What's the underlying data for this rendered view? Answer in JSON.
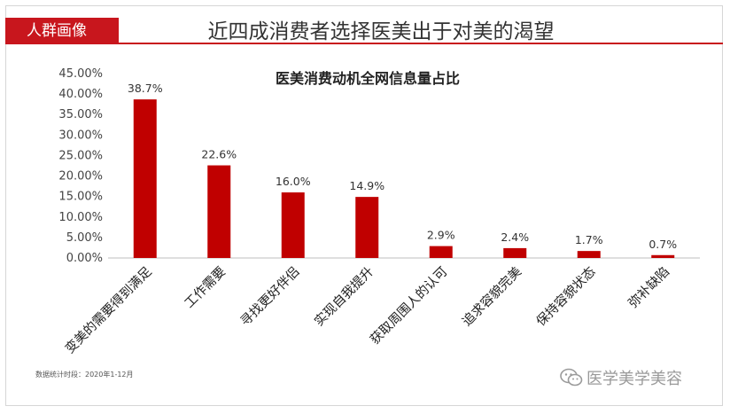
{
  "header": {
    "tag_label": "人群画像",
    "title": "近四成消费者选择医美出于对美的渴望"
  },
  "footnote": "数据统计时段：2020年1-12月",
  "watermark": {
    "text": "医学美学美容",
    "icon": "wechat-icon"
  },
  "colors": {
    "accent": "#c8161d",
    "bar": "#c00000"
  },
  "chart_data": {
    "type": "bar",
    "title": "医美消费动机全网信息量占比",
    "categories": [
      "变美的需要得到满足",
      "工作需要",
      "寻找更好伴侣",
      "实现自我提升",
      "获取周围人的认可",
      "追求容貌完美",
      "保持容貌状态",
      "弥补缺陷"
    ],
    "values": [
      38.7,
      22.6,
      16.0,
      14.9,
      2.9,
      2.4,
      1.7,
      0.7
    ],
    "value_labels": [
      "38.7%",
      "22.6%",
      "16.0%",
      "14.9%",
      "2.9%",
      "2.4%",
      "1.7%",
      "0.7%"
    ],
    "ylim": [
      0,
      45
    ],
    "yticks": [
      "0.00%",
      "5.00%",
      "10.00%",
      "15.00%",
      "20.00%",
      "25.00%",
      "30.00%",
      "35.00%",
      "40.00%",
      "45.00%"
    ],
    "grid": false,
    "xlabel": "",
    "ylabel": ""
  }
}
